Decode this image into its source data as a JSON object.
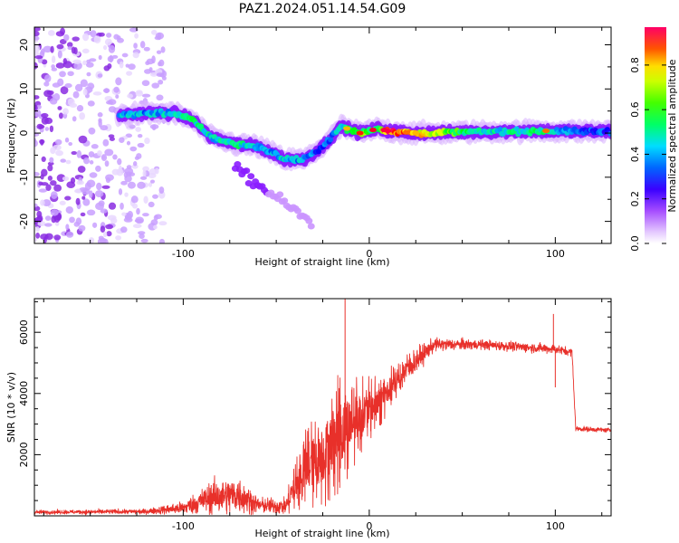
{
  "chart_data": [
    {
      "type": "heatmap",
      "title": "PAZ1.2024.051.14.54.G09",
      "xlabel": "Height of straight line (km)",
      "ylabel": "Frequency (Hz)",
      "xlim": [
        -180,
        130
      ],
      "ylim": [
        -25,
        24
      ],
      "xticks": [
        -100,
        0,
        100
      ],
      "yticks": [
        -20,
        -10,
        0,
        10,
        20
      ],
      "colorbar": {
        "label": "Normalized spectral amplitude",
        "range": [
          0.0,
          0.97
        ],
        "ticks": [
          0.0,
          0.2,
          0.4,
          0.6,
          0.8
        ],
        "colormap": [
          "#ffffff",
          "#e6ccff",
          "#a64dff",
          "#7a00ff",
          "#0000ff",
          "#00bfff",
          "#00ff88",
          "#00ff00",
          "#aaff00",
          "#ffff00",
          "#ff8800",
          "#ff0000",
          "#ff0066"
        ]
      },
      "ridge": [
        {
          "x": -135,
          "y": 4,
          "v": 0.45
        },
        {
          "x": -120,
          "y": 4.5,
          "v": 0.4
        },
        {
          "x": -105,
          "y": 4.5,
          "v": 0.45
        },
        {
          "x": -95,
          "y": 3,
          "v": 0.5
        },
        {
          "x": -85,
          "y": -1,
          "v": 0.45
        },
        {
          "x": -72,
          "y": -2.5,
          "v": 0.5
        },
        {
          "x": -60,
          "y": -3,
          "v": 0.4
        },
        {
          "x": -45,
          "y": -6,
          "v": 0.45
        },
        {
          "x": -35,
          "y": -6,
          "v": 0.4
        },
        {
          "x": -25,
          "y": -3,
          "v": 0.35
        },
        {
          "x": -15,
          "y": 1.5,
          "v": 0.45
        },
        {
          "x": -5,
          "y": 0,
          "v": 0.6
        },
        {
          "x": 5,
          "y": 1,
          "v": 0.55
        },
        {
          "x": 10,
          "y": 0.5,
          "v": 0.95
        },
        {
          "x": 25,
          "y": 0,
          "v": 0.75
        },
        {
          "x": 60,
          "y": 0.3,
          "v": 0.45
        },
        {
          "x": 95,
          "y": 0.5,
          "v": 0.5
        },
        {
          "x": 110,
          "y": 0.4,
          "v": 0.35
        },
        {
          "x": 130,
          "y": 0.4,
          "v": 0.35
        }
      ],
      "noise_region": {
        "x_from": -180,
        "x_to": -110,
        "y_from": -25,
        "y_to": 24
      }
    },
    {
      "type": "line",
      "title": "",
      "xlabel": "Height of straight line (km)",
      "ylabel": "SNR (10 * v/v)",
      "xlim": [
        -180,
        130
      ],
      "ylim": [
        0,
        7100
      ],
      "xticks": [
        -100,
        0,
        100
      ],
      "yticks": [
        2000,
        4000,
        6000
      ],
      "color": "#e8302a",
      "series_profile": [
        {
          "x": -180,
          "mean": 120,
          "noise": 60
        },
        {
          "x": -120,
          "mean": 140,
          "noise": 80
        },
        {
          "x": -100,
          "mean": 260,
          "noise": 200
        },
        {
          "x": -85,
          "mean": 600,
          "noise": 500
        },
        {
          "x": -70,
          "mean": 700,
          "noise": 600
        },
        {
          "x": -60,
          "mean": 350,
          "noise": 250
        },
        {
          "x": -45,
          "mean": 300,
          "noise": 250
        },
        {
          "x": -35,
          "mean": 1500,
          "noise": 1400
        },
        {
          "x": -25,
          "mean": 2000,
          "noise": 1800
        },
        {
          "x": -15,
          "mean": 2800,
          "noise": 2000
        },
        {
          "x": -5,
          "mean": 3300,
          "noise": 1300
        },
        {
          "x": 5,
          "mean": 3700,
          "noise": 900
        },
        {
          "x": 20,
          "mean": 4800,
          "noise": 500
        },
        {
          "x": 35,
          "mean": 5600,
          "noise": 200
        },
        {
          "x": 60,
          "mean": 5600,
          "noise": 150
        },
        {
          "x": 100,
          "mean": 5450,
          "noise": 150
        },
        {
          "x": 109,
          "mean": 5350,
          "noise": 120
        },
        {
          "x": 111,
          "mean": 2850,
          "noise": 80
        },
        {
          "x": 130,
          "mean": 2800,
          "noise": 70
        }
      ],
      "spikes": [
        {
          "x": -13,
          "y": 7100
        },
        {
          "x": 99,
          "y": 6600
        },
        {
          "x": 100,
          "y": 4200
        }
      ]
    }
  ]
}
